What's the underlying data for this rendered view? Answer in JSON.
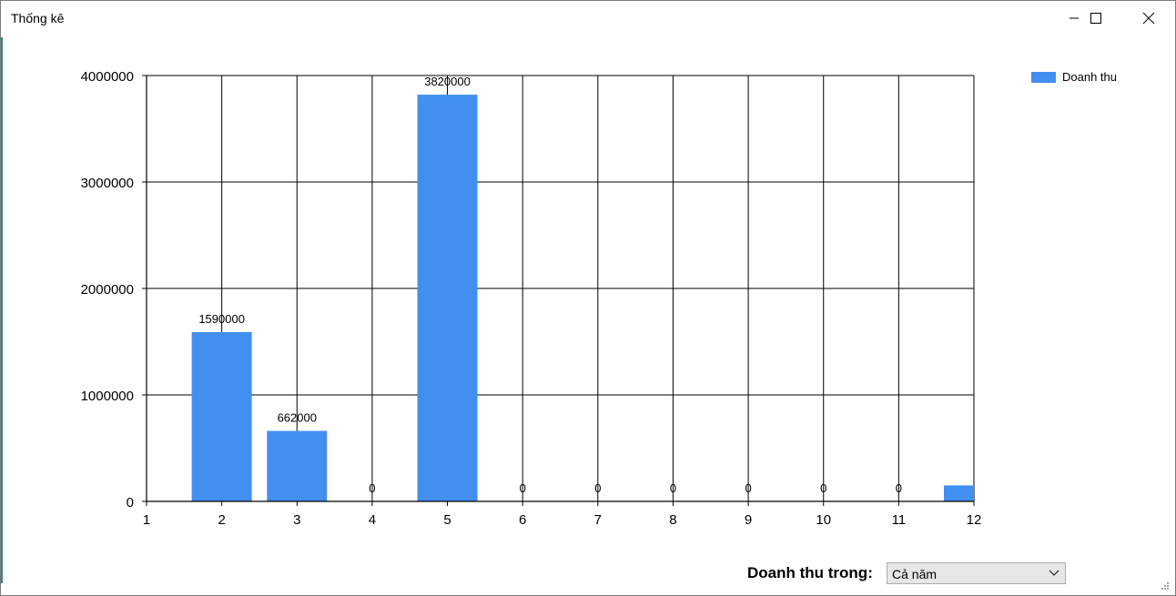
{
  "window": {
    "title": "Thống kê",
    "controls": [
      "minimize-icon",
      "maximize-icon",
      "close-icon"
    ]
  },
  "chart_data": {
    "type": "bar",
    "categories": [
      "1",
      "2",
      "3",
      "4",
      "5",
      "6",
      "7",
      "8",
      "9",
      "10",
      "11",
      "12"
    ],
    "series": [
      {
        "name": "Doanh thu",
        "color": "#428ff0",
        "values": [
          null,
          1590000,
          662000,
          0,
          3820000,
          0,
          0,
          0,
          0,
          0,
          0,
          150000
        ],
        "labels": [
          "",
          "1590000",
          "662000",
          "0",
          "3820000",
          "0",
          "0",
          "0",
          "0",
          "0",
          "0",
          ""
        ]
      }
    ],
    "x_ticks": [
      "1",
      "2",
      "3",
      "4",
      "5",
      "6",
      "7",
      "8",
      "9",
      "10",
      "11",
      "12"
    ],
    "y_ticks": [
      "0",
      "1000000",
      "2000000",
      "3000000",
      "4000000"
    ],
    "ylim": [
      0,
      4000000
    ],
    "grid": true,
    "legend_position": "right"
  },
  "filter": {
    "label": "Doanh thu trong:",
    "selected": "Cả năm"
  }
}
